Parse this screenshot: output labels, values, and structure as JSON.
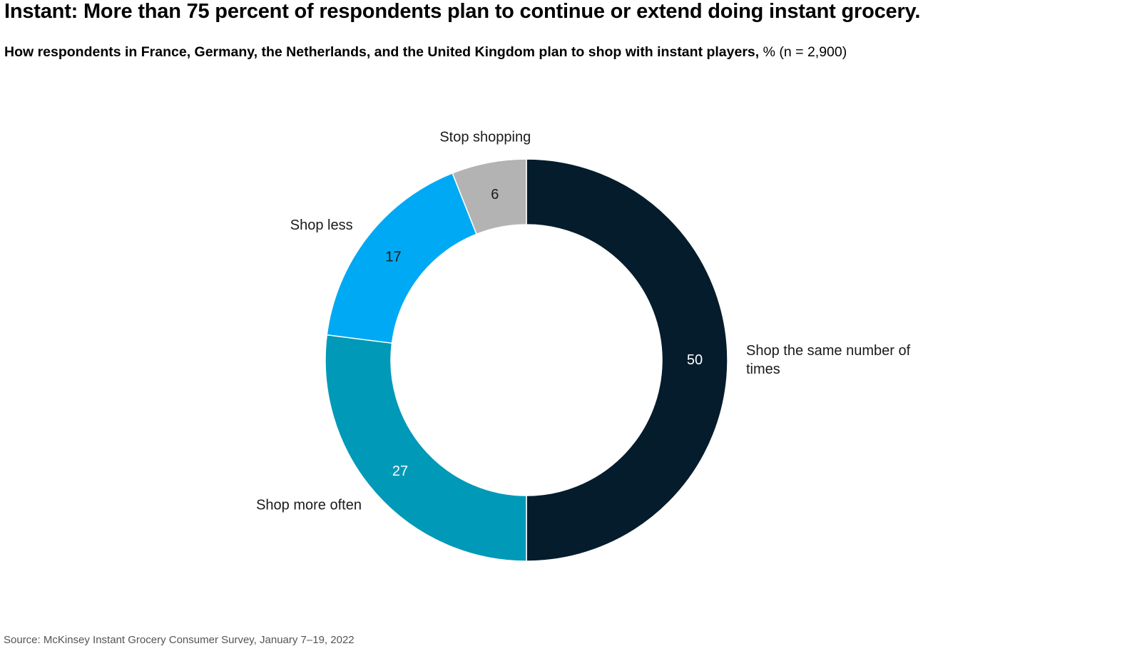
{
  "header": {
    "title": "Instant: More than 75 percent of respondents plan to continue or extend doing instant grocery.",
    "subtitle_bold": "How respondents in France, Germany, the Netherlands, and the United Kingdom plan to shop with instant players,",
    "subtitle_rest": " % (n = 2,900)"
  },
  "footer": {
    "source": "Source: McKinsey Instant Grocery Consumer Survey, January 7–19, 2022"
  },
  "chart_data": {
    "type": "pie",
    "donut": true,
    "unit": "%",
    "slices": [
      {
        "label": "Shop the same number of times",
        "label_lines": [
          "Shop the same number of",
          "times"
        ],
        "value": 50,
        "color": "#051c2c",
        "value_text_color": "#ffffff"
      },
      {
        "label": "Shop more often",
        "label_lines": [
          "Shop more often"
        ],
        "value": 27,
        "color": "#0099b8",
        "value_text_color": "#ffffff"
      },
      {
        "label": "Shop less",
        "label_lines": [
          "Shop less"
        ],
        "value": 17,
        "color": "#00a9f4",
        "value_text_color": "#1a1a1a"
      },
      {
        "label": "Stop shopping",
        "label_lines": [
          "Stop shopping"
        ],
        "value": 6,
        "color": "#b3b3b3",
        "value_text_color": "#1a1a1a"
      }
    ],
    "legend": "none"
  }
}
